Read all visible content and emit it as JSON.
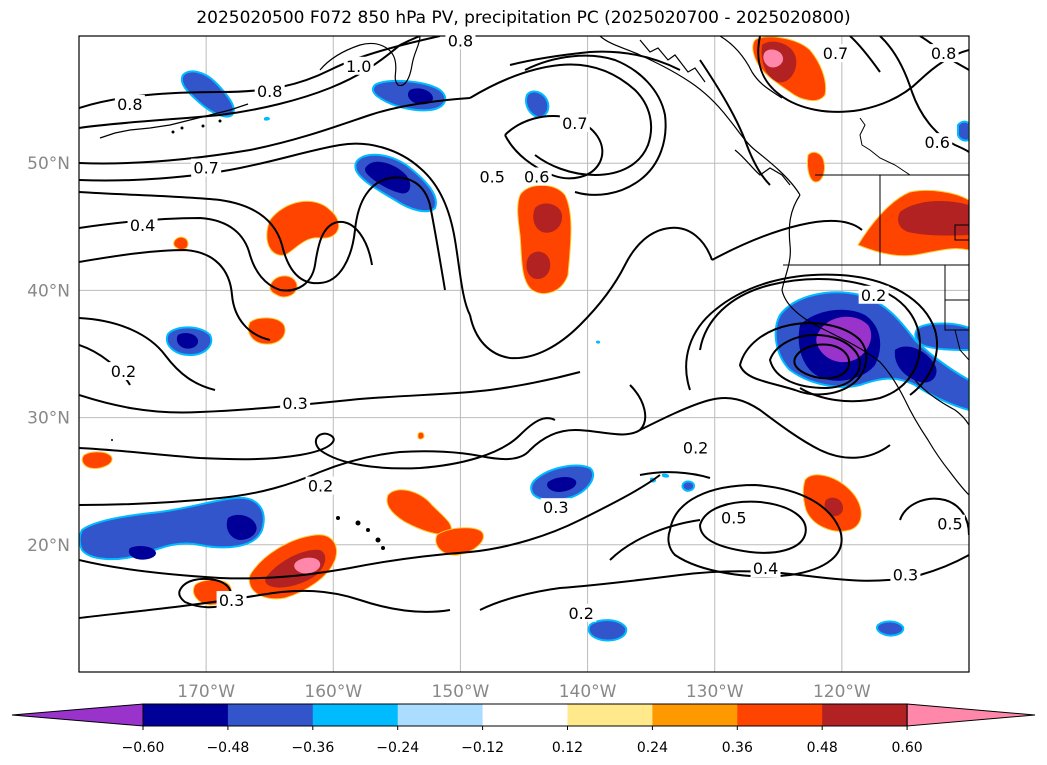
{
  "title": "2025020500 F072 850 hPa PV, precipitation PC (2025020700 - 2025020800)",
  "map": {
    "lon_range": [
      -180,
      -110
    ],
    "lat_range": [
      10,
      60
    ],
    "lat_ticks": [
      {
        "value": 50,
        "label": "50°N"
      },
      {
        "value": 40,
        "label": "40°N"
      },
      {
        "value": 30,
        "label": "30°N"
      },
      {
        "value": 20,
        "label": "20°N"
      }
    ],
    "lon_ticks": [
      {
        "value": -170,
        "label": "170°W"
      },
      {
        "value": -160,
        "label": "160°W"
      },
      {
        "value": -150,
        "label": "150°W"
      },
      {
        "value": -140,
        "label": "140°W"
      },
      {
        "value": -130,
        "label": "130°W"
      },
      {
        "value": -120,
        "label": "120°W"
      }
    ],
    "contour_labels": [
      {
        "text": "0.8",
        "lon": -176.0,
        "lat": 54.5
      },
      {
        "text": "0.8",
        "lon": -165.0,
        "lat": 55.5
      },
      {
        "text": "0.8",
        "lon": -150.0,
        "lat": 59.5
      },
      {
        "text": "1.0",
        "lon": -158.0,
        "lat": 57.5
      },
      {
        "text": "0.7",
        "lon": -120.5,
        "lat": 58.5
      },
      {
        "text": "0.7",
        "lon": -170.0,
        "lat": 49.5
      },
      {
        "text": "0.7",
        "lon": -141.0,
        "lat": 53.0
      },
      {
        "text": "0.8",
        "lon": -112.0,
        "lat": 58.5
      },
      {
        "text": "0.6",
        "lon": -112.5,
        "lat": 51.5
      },
      {
        "text": "0.5",
        "lon": -147.5,
        "lat": 48.8
      },
      {
        "text": "0.6",
        "lon": -144.0,
        "lat": 48.8
      },
      {
        "text": "0.4",
        "lon": -175.0,
        "lat": 45.0
      },
      {
        "text": "0.2",
        "lon": -117.5,
        "lat": 39.5
      },
      {
        "text": "0.2",
        "lon": -176.5,
        "lat": 33.5
      },
      {
        "text": "0.3",
        "lon": -163.0,
        "lat": 31.0
      },
      {
        "text": "0.2",
        "lon": -131.5,
        "lat": 27.5
      },
      {
        "text": "0.2",
        "lon": -161.0,
        "lat": 24.5
      },
      {
        "text": "0.3",
        "lon": -142.5,
        "lat": 22.8
      },
      {
        "text": "0.5",
        "lon": -128.5,
        "lat": 22.0
      },
      {
        "text": "0.5",
        "lon": -111.5,
        "lat": 21.5
      },
      {
        "text": "0.4",
        "lon": -126.0,
        "lat": 18.0
      },
      {
        "text": "0.3",
        "lon": -115.0,
        "lat": 17.5
      },
      {
        "text": "0.2",
        "lon": -140.5,
        "lat": 14.5
      },
      {
        "text": "0.3",
        "lon": -168.0,
        "lat": 15.5
      }
    ]
  },
  "colorbar": {
    "levels": [
      -0.6,
      -0.48,
      -0.36,
      -0.24,
      -0.12,
      0.12,
      0.24,
      0.36,
      0.48,
      0.6
    ],
    "tick_labels": [
      "−0.60",
      "−0.48",
      "−0.36",
      "−0.24",
      "−0.12",
      "0.12",
      "0.24",
      "0.36",
      "0.48",
      "0.60"
    ],
    "colors": [
      "#9933cc",
      "#000099",
      "#3355cc",
      "#00bbff",
      "#aaddff",
      "#ffffff",
      "#ffe98a",
      "#ff9900",
      "#ff4400",
      "#b22222",
      "#ff88aa"
    ]
  }
}
